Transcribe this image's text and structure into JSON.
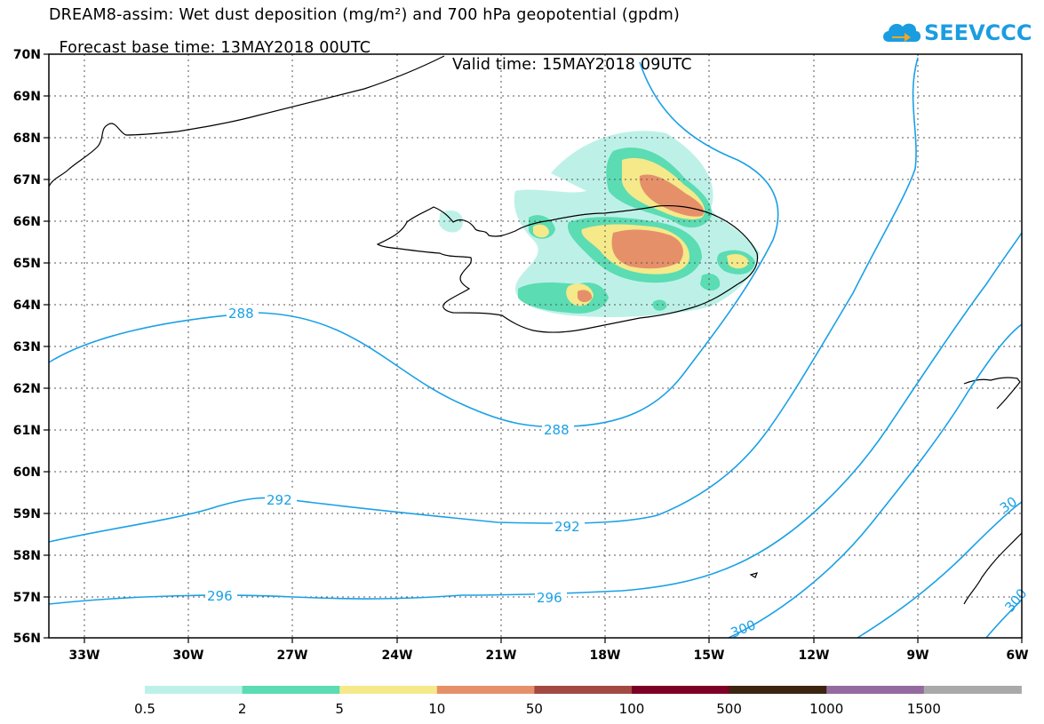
{
  "header": {
    "title_line1": "DREAM8-assim: Wet dust deposition (mg/m²) and 700 hPa geopotential (gpdm)",
    "base_time": "Forecast base time: 13MAY2018 00UTC",
    "valid_time": "Valid time: 15MAY2018 09UTC"
  },
  "logo": {
    "text": "SEEVCCC",
    "color": "#1a9de0",
    "icon": "cloud-arrow-icon"
  },
  "map": {
    "projection": "lat-lon",
    "lon_range": [
      -34.5,
      -6
    ],
    "lat_range": [
      56,
      70
    ],
    "lon_ticks": [
      "33W",
      "30W",
      "27W",
      "24W",
      "21W",
      "18W",
      "15W",
      "12W",
      "9W",
      "6W"
    ],
    "lat_ticks": [
      "70N",
      "69N",
      "68N",
      "67N",
      "66N",
      "65N",
      "64N",
      "63N",
      "62N",
      "61N",
      "60N",
      "59N",
      "58N",
      "57N",
      "56N"
    ],
    "gridlines": "dotted",
    "coastline_color": "#000000",
    "contour_color": "#1aa0e6",
    "contour_labels": [
      "288",
      "288",
      "292",
      "292",
      "296",
      "296",
      "300",
      "300",
      "30"
    ]
  },
  "legend": {
    "labels": [
      "0.5",
      "2",
      "5",
      "10",
      "50",
      "100",
      "500",
      "1000",
      "1500"
    ],
    "colors": [
      "#bdf1e8",
      "#5bdcb3",
      "#f5e98a",
      "#e6906a",
      "#a24a42",
      "#7d0026",
      "#3b2410",
      "#956a9e",
      "#a9a9a9"
    ]
  }
}
